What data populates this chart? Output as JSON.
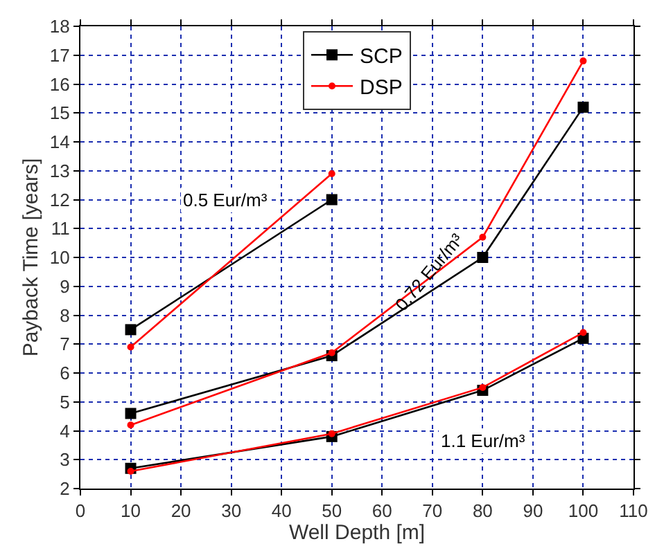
{
  "chart_data": {
    "type": "line",
    "xlabel": "Well Depth [m]",
    "ylabel": "Payback Time [years]",
    "xlim": [
      0,
      110
    ],
    "xticks": [
      0,
      10,
      20,
      30,
      40,
      50,
      60,
      70,
      80,
      90,
      100,
      110
    ],
    "ylim": [
      2,
      18
    ],
    "yticks": [
      2,
      3,
      4,
      5,
      6,
      7,
      8,
      9,
      10,
      11,
      12,
      13,
      14,
      15,
      16,
      17,
      18
    ],
    "grid": true,
    "legend": "top",
    "line_style": "solid",
    "series": [
      {
        "name": "SCP",
        "color": "#000000",
        "marker": "square",
        "x": [
          10,
          50
        ],
        "values": [
          7.5,
          12.0
        ]
      },
      {
        "name": "DSP",
        "color": "#ff0000",
        "marker": "circle",
        "x": [
          10,
          50
        ],
        "values": [
          6.9,
          12.9
        ]
      },
      {
        "color": "#000000",
        "marker": "square",
        "x": [
          10,
          50,
          80,
          100
        ],
        "values": [
          4.6,
          6.6,
          10.0,
          15.2
        ]
      },
      {
        "color": "#ff0000",
        "marker": "circle",
        "x": [
          10,
          50,
          80,
          100
        ],
        "values": [
          4.2,
          6.7,
          10.7,
          16.8
        ]
      },
      {
        "color": "#000000",
        "marker": "square",
        "x": [
          10,
          50,
          80,
          100
        ],
        "values": [
          2.7,
          3.8,
          5.4,
          7.2
        ]
      },
      {
        "color": "#ff0000",
        "marker": "circle",
        "x": [
          10,
          50,
          80,
          100
        ],
        "values": [
          2.6,
          3.9,
          5.5,
          7.4
        ]
      }
    ],
    "annotations": [
      "0.5 Eur/m³",
      "0.72 Eur/m³",
      "1.1 Eur/m³"
    ]
  }
}
